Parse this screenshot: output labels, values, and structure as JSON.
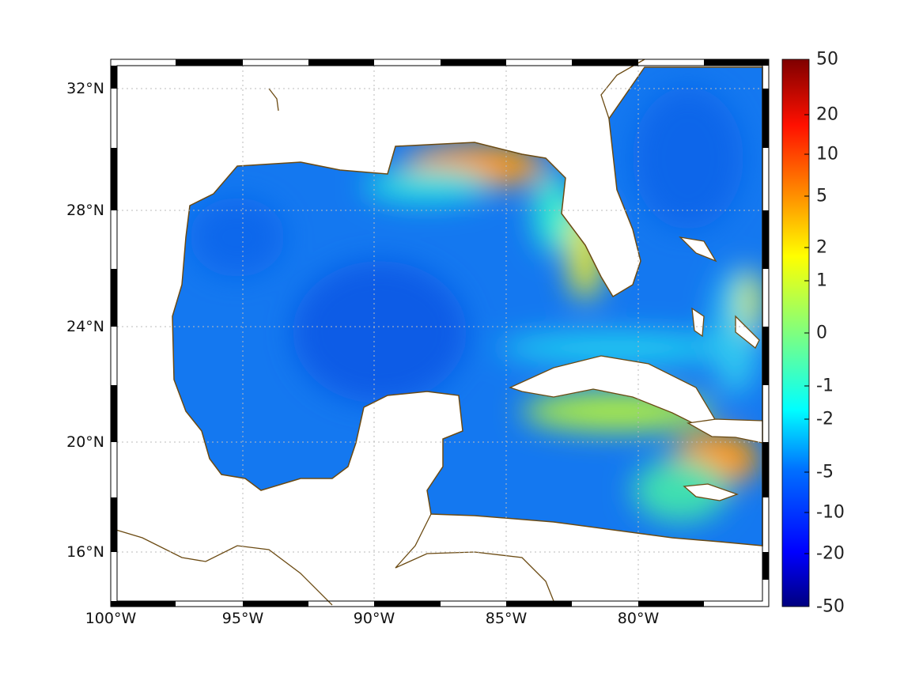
{
  "chart_data": {
    "type": "heatmap",
    "title": "",
    "region": "Gulf of Mexico and Caribbean",
    "xlabel": "",
    "ylabel": "",
    "x_ticks": [
      "100°W",
      "95°W",
      "90°W",
      "85°W",
      "80°W"
    ],
    "y_ticks": [
      "32°N",
      "28°N",
      "24°N",
      "20°N",
      "16°N"
    ],
    "xlim": [
      -100,
      -75
    ],
    "ylim": [
      14.2,
      33
    ],
    "grid": true,
    "colorbar": {
      "placement": "right",
      "ticks": [
        "50",
        "20",
        "10",
        "5",
        "2",
        "1",
        "0",
        "-1",
        "-2",
        "-5",
        "-10",
        "-20",
        "-50"
      ],
      "range": [
        -50,
        50
      ],
      "colormap": "jet"
    },
    "features": [
      {
        "label": "northern Gulf shelf",
        "approx_value": 5
      },
      {
        "label": "west Florida shelf",
        "approx_value": 1
      },
      {
        "label": "south of Hispaniola",
        "approx_value": 5
      },
      {
        "label": "central Gulf basin",
        "approx_value": -7
      }
    ]
  },
  "colors": {
    "coast": "#6b4a12",
    "land": "#ffffff",
    "ocean_base": "#1478f0"
  }
}
